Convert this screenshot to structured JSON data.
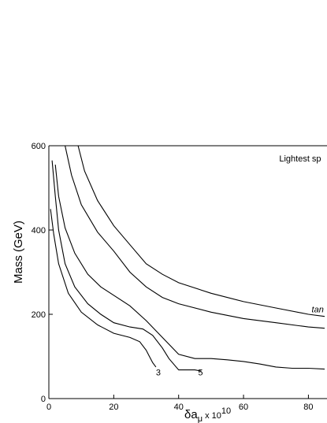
{
  "chart_data": {
    "type": "line",
    "title": "",
    "xlabel": {
      "main": "δa",
      "sub": "μ",
      "mid": " x 10",
      "sup": "10"
    },
    "ylabel": "Mass (GeV)",
    "xlim": [
      0,
      85
    ],
    "ylim": [
      0,
      600
    ],
    "xticks": [
      0,
      20,
      40,
      60,
      80
    ],
    "yticks": [
      0,
      200,
      400,
      600
    ],
    "grid": false,
    "annotations": [
      {
        "text": "Lightest sp",
        "x": 71,
        "y": 563
      },
      {
        "text": "tan",
        "x": 81,
        "y": 205
      },
      {
        "text": "3",
        "x": 33,
        "y": 55
      },
      {
        "text": "5",
        "x": 46,
        "y": 55
      }
    ],
    "series": [
      {
        "points": [
          [
            0.5,
            450
          ],
          [
            1.5,
            390
          ],
          [
            3,
            320
          ],
          [
            6,
            250
          ],
          [
            10,
            205
          ],
          [
            15,
            175
          ],
          [
            20,
            155
          ],
          [
            25,
            145
          ],
          [
            28,
            135
          ],
          [
            30,
            115
          ],
          [
            31,
            100
          ],
          [
            32,
            85
          ],
          [
            33,
            75
          ]
        ]
      },
      {
        "points": [
          [
            1,
            565
          ],
          [
            2,
            480
          ],
          [
            3,
            400
          ],
          [
            5,
            320
          ],
          [
            8,
            265
          ],
          [
            12,
            225
          ],
          [
            16,
            200
          ],
          [
            20,
            180
          ],
          [
            25,
            170
          ],
          [
            29,
            165
          ],
          [
            32,
            150
          ],
          [
            35,
            120
          ],
          [
            37,
            95
          ],
          [
            40,
            68
          ],
          [
            45,
            68
          ],
          [
            47,
            65
          ]
        ]
      },
      {
        "points": [
          [
            2,
            555
          ],
          [
            3,
            480
          ],
          [
            5,
            405
          ],
          [
            8,
            345
          ],
          [
            12,
            295
          ],
          [
            16,
            265
          ],
          [
            20,
            245
          ],
          [
            25,
            220
          ],
          [
            30,
            185
          ],
          [
            35,
            145
          ],
          [
            40,
            105
          ],
          [
            45,
            95
          ],
          [
            50,
            95
          ],
          [
            55,
            92
          ],
          [
            60,
            88
          ],
          [
            65,
            82
          ],
          [
            70,
            75
          ],
          [
            75,
            72
          ],
          [
            80,
            72
          ],
          [
            85,
            70
          ]
        ]
      },
      {
        "points": [
          [
            5,
            600
          ],
          [
            7,
            530
          ],
          [
            10,
            460
          ],
          [
            15,
            395
          ],
          [
            20,
            350
          ],
          [
            25,
            300
          ],
          [
            30,
            265
          ],
          [
            35,
            240
          ],
          [
            40,
            225
          ],
          [
            50,
            205
          ],
          [
            60,
            190
          ],
          [
            70,
            180
          ],
          [
            80,
            170
          ],
          [
            85,
            167
          ]
        ]
      },
      {
        "points": [
          [
            9,
            600
          ],
          [
            11,
            540
          ],
          [
            15,
            470
          ],
          [
            20,
            410
          ],
          [
            25,
            365
          ],
          [
            30,
            320
          ],
          [
            35,
            295
          ],
          [
            40,
            275
          ],
          [
            50,
            250
          ],
          [
            60,
            230
          ],
          [
            70,
            215
          ],
          [
            80,
            200
          ],
          [
            85,
            195
          ]
        ]
      }
    ]
  }
}
